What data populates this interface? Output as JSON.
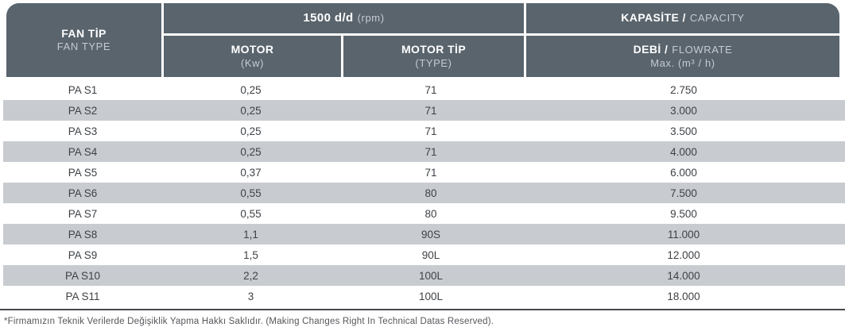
{
  "header": {
    "fan_col": {
      "title": "FAN TİP",
      "subtitle": "FAN TYPE"
    },
    "rpm_group": {
      "title": "1500 d/d",
      "unit": "(rpm)"
    },
    "motor_col": {
      "title": "MOTOR",
      "subtitle": "(Kw)"
    },
    "motor_type_col": {
      "title": "MOTOR TİP",
      "subtitle": "(TYPE)"
    },
    "capacity_group": {
      "title": "KAPASİTE /",
      "subtitle": "CAPACITY"
    },
    "flowrate_col": {
      "title": "DEBİ /",
      "title2": "FLOWRATE",
      "subtitle": "Max. (m³ / h)"
    }
  },
  "rows": [
    {
      "fan_type": "PA S1",
      "motor_kw": "0,25",
      "motor_type": "71",
      "flowrate": "2.750"
    },
    {
      "fan_type": "PA S2",
      "motor_kw": "0,25",
      "motor_type": "71",
      "flowrate": "3.000"
    },
    {
      "fan_type": "PA S3",
      "motor_kw": "0,25",
      "motor_type": "71",
      "flowrate": "3.500"
    },
    {
      "fan_type": "PA S4",
      "motor_kw": "0,25",
      "motor_type": "71",
      "flowrate": "4.000"
    },
    {
      "fan_type": "PA S5",
      "motor_kw": "0,37",
      "motor_type": "71",
      "flowrate": "6.000"
    },
    {
      "fan_type": "PA S6",
      "motor_kw": "0,55",
      "motor_type": "80",
      "flowrate": "7.500"
    },
    {
      "fan_type": "PA S7",
      "motor_kw": "0,55",
      "motor_type": "80",
      "flowrate": "9.500"
    },
    {
      "fan_type": "PA S8",
      "motor_kw": "1,1",
      "motor_type": "90S",
      "flowrate": "11.000"
    },
    {
      "fan_type": "PA S9",
      "motor_kw": "1,5",
      "motor_type": "90L",
      "flowrate": "12.000"
    },
    {
      "fan_type": "PA S10",
      "motor_kw": "2,2",
      "motor_type": "100L",
      "flowrate": "14.000"
    },
    {
      "fan_type": "PA S11",
      "motor_kw": "3",
      "motor_type": "100L",
      "flowrate": "18.000"
    }
  ],
  "footnote": "*Firmamızın Teknik Verilerde Değişiklik Yapma Hakkı Saklıdır. (Making Changes Right In Technical Datas Reserved).",
  "colors": {
    "header_bg": "#5a646d",
    "header_text": "#ffffff",
    "header_subtext": "#c5cad0",
    "stripe": "#c8ccd0",
    "body_text": "#3e4246",
    "footnote_text": "#54575b"
  }
}
